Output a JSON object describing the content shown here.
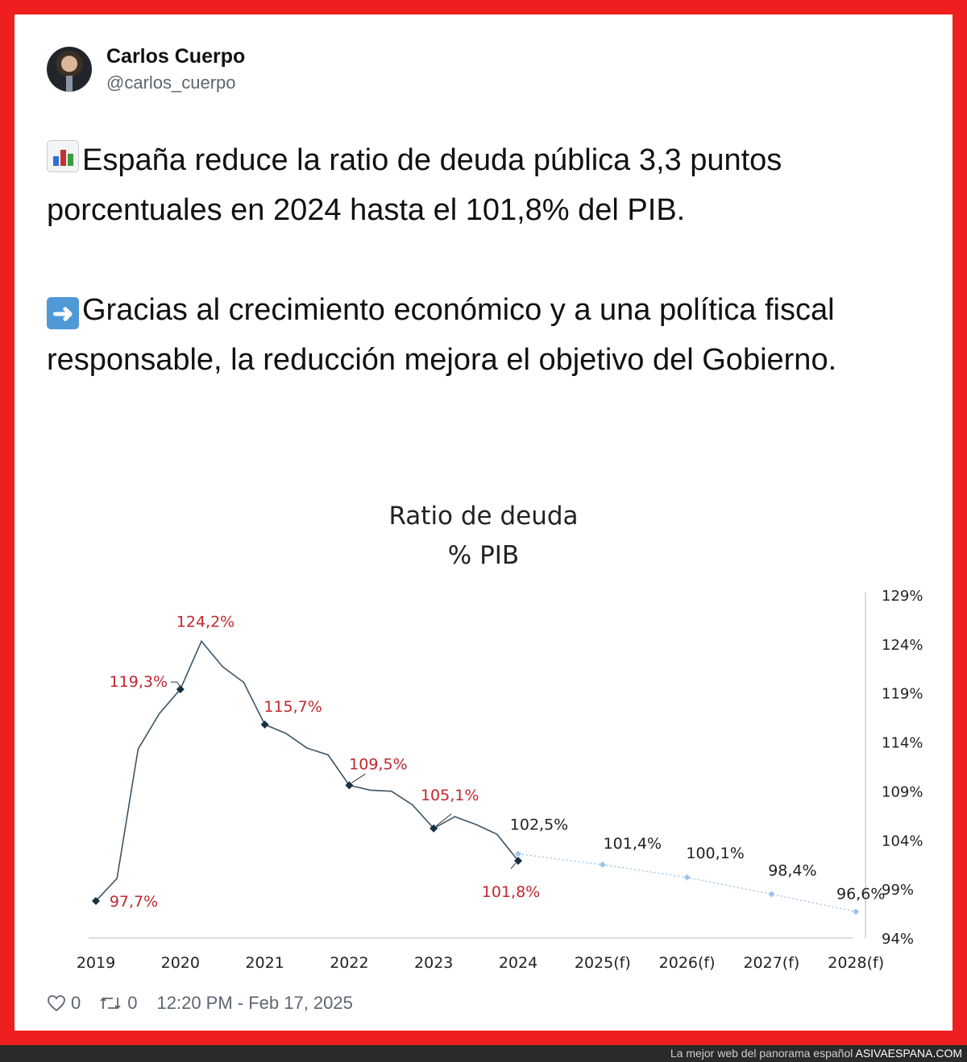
{
  "tweet": {
    "author_name": "Carlos Cuerpo",
    "author_handle": "@carlos_cuerpo",
    "paragraph1": "España reduce la ratio de deuda pública 3,3 puntos porcentuales en 2024 hasta el 101,8% del PIB.",
    "paragraph2": "Gracias al crecimiento económico y a una política fiscal responsable, la reducción mejora el objetivo del Gobierno.",
    "emoji1": "bar-chart-icon",
    "emoji2": "right-arrow-icon",
    "likes": "0",
    "retweets": "0",
    "timestamp": "12:20 PM - Feb 17, 2025"
  },
  "watermark": {
    "text": "La mejor web del panorama español",
    "brand": "ASIVAESPANA.COM"
  },
  "colors": {
    "frame": "#f01f1f",
    "actual_line": "#3d5566",
    "forecast_line": "#9ec3e6",
    "actual_label": "#c0272d",
    "forecast_label": "#222222"
  },
  "chart_data": {
    "type": "line",
    "title": "Ratio de deuda",
    "subtitle": "% PIB",
    "categories": [
      "2019",
      "2020",
      "2021",
      "2022",
      "2023",
      "2024",
      "2025(f)",
      "2026(f)",
      "2027(f)",
      "2028(f)"
    ],
    "y_axis_side": "right",
    "y_ticks": [
      "129%",
      "124%",
      "119%",
      "114%",
      "109%",
      "104%",
      "99%",
      "94%"
    ],
    "ylim": [
      94,
      129
    ],
    "grid": false,
    "series": [
      {
        "style": "solid-dark",
        "points": [
          {
            "x": 2019.0,
            "y": 97.7
          },
          {
            "x": 2019.25,
            "y": 100.0
          },
          {
            "x": 2019.5,
            "y": 113.2
          },
          {
            "x": 2019.75,
            "y": 116.8
          },
          {
            "x": 2020.0,
            "y": 119.3
          },
          {
            "x": 2020.25,
            "y": 124.2
          },
          {
            "x": 2020.5,
            "y": 121.6
          },
          {
            "x": 2020.75,
            "y": 120.0
          },
          {
            "x": 2021.0,
            "y": 115.7
          },
          {
            "x": 2021.25,
            "y": 114.8
          },
          {
            "x": 2021.5,
            "y": 113.3
          },
          {
            "x": 2021.75,
            "y": 112.6
          },
          {
            "x": 2022.0,
            "y": 109.5
          },
          {
            "x": 2022.25,
            "y": 109.0
          },
          {
            "x": 2022.5,
            "y": 108.9
          },
          {
            "x": 2022.75,
            "y": 107.5
          },
          {
            "x": 2023.0,
            "y": 105.1
          },
          {
            "x": 2023.25,
            "y": 106.3
          },
          {
            "x": 2023.5,
            "y": 105.5
          },
          {
            "x": 2023.75,
            "y": 104.5
          },
          {
            "x": 2024.0,
            "y": 101.8
          }
        ],
        "markers": [
          2019,
          2020,
          2021,
          2022,
          2023,
          2024
        ]
      },
      {
        "style": "dotted-light",
        "points": [
          {
            "x": 2024.0,
            "y": 102.5
          },
          {
            "x": 2025.0,
            "y": 101.4
          },
          {
            "x": 2026.0,
            "y": 100.1
          },
          {
            "x": 2027.0,
            "y": 98.4
          },
          {
            "x": 2028.0,
            "y": 96.6
          }
        ],
        "markers": [
          2024,
          2025,
          2026,
          2027,
          2028
        ]
      }
    ],
    "data_labels": [
      {
        "text": "97,7%",
        "x": 2019.0,
        "y": 97.7,
        "color": "red"
      },
      {
        "text": "119,3%",
        "x": 2020.0,
        "y": 119.3,
        "color": "red"
      },
      {
        "text": "124,2%",
        "x": 2020.25,
        "y": 124.2,
        "color": "red"
      },
      {
        "text": "115,7%",
        "x": 2021.0,
        "y": 115.7,
        "color": "red"
      },
      {
        "text": "109,5%",
        "x": 2022.0,
        "y": 109.5,
        "color": "red"
      },
      {
        "text": "105,1%",
        "x": 2023.0,
        "y": 105.1,
        "color": "red"
      },
      {
        "text": "101,8%",
        "x": 2024.0,
        "y": 101.8,
        "color": "red"
      },
      {
        "text": "102,5%",
        "x": 2024.0,
        "y": 102.5,
        "color": "dark"
      },
      {
        "text": "101,4%",
        "x": 2025.0,
        "y": 101.4,
        "color": "dark"
      },
      {
        "text": "100,1%",
        "x": 2026.0,
        "y": 100.1,
        "color": "dark"
      },
      {
        "text": "98,4%",
        "x": 2027.0,
        "y": 98.4,
        "color": "dark"
      },
      {
        "text": "96,6%",
        "x": 2028.0,
        "y": 96.6,
        "color": "dark"
      }
    ]
  }
}
